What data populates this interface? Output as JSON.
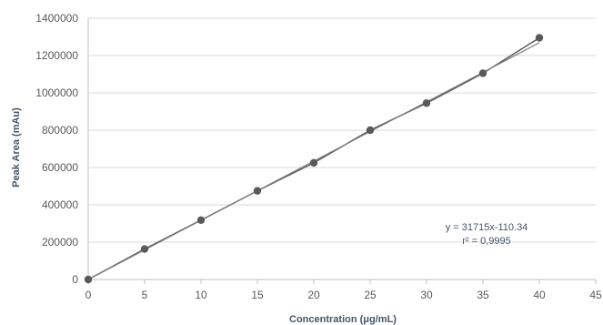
{
  "chart_data": {
    "type": "scatter",
    "title": "",
    "xlabel": "Concentration (μg/mL)",
    "ylabel": "Peak Area (mAu)",
    "xlim": [
      0,
      45
    ],
    "ylim": [
      0,
      1400000
    ],
    "x_ticks": [
      "0",
      "5",
      "10",
      "15",
      "20",
      "25",
      "30",
      "35",
      "40",
      "45"
    ],
    "y_ticks": [
      "0",
      "200000",
      "400000",
      "600000",
      "800000",
      "1000000",
      "1200000",
      "1400000"
    ],
    "grid": "horizontal",
    "legend": "none",
    "series": [
      {
        "x": [
          0,
          5,
          10,
          15,
          20,
          25,
          30,
          35,
          40
        ],
        "y": [
          0,
          163000,
          318000,
          475000,
          625000,
          800000,
          945000,
          1105000,
          1295000
        ],
        "marker": "circle",
        "connected": true,
        "color": "#595959"
      }
    ],
    "trendline": {
      "type": "linear",
      "slope": 31715,
      "intercept": -110.34,
      "x_range": [
        0,
        40
      ],
      "color": "#808080"
    },
    "annotations": [
      "y = 31715x-110.34",
      "r² = 0,9995"
    ]
  }
}
